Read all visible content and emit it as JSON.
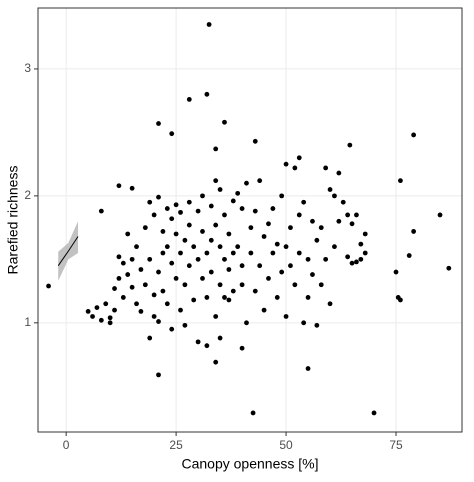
{
  "chart_data": {
    "type": "scatter",
    "x_label": "Canopy openness [%]",
    "y_label": "Rarefied richness",
    "xlim": [
      -6.4,
      90
    ],
    "ylim": [
      0.14,
      3.48
    ],
    "xticks": [
      0,
      25,
      50,
      75
    ],
    "yticks": [
      1,
      2,
      3
    ],
    "grid": true,
    "point_color": "#000000",
    "points": {
      "x": [
        32.5,
        28,
        32,
        21,
        24,
        36,
        43,
        34,
        53,
        64.5,
        79,
        76,
        85,
        87,
        70,
        42.5,
        55,
        21,
        34,
        40,
        -4,
        8,
        12,
        15,
        75,
        75.5,
        76,
        78,
        79,
        68,
        68,
        66,
        65,
        5,
        6,
        7,
        8,
        9,
        10,
        10,
        11,
        11,
        12,
        12,
        13,
        13,
        14,
        14,
        15,
        15,
        16,
        16,
        17,
        17,
        18,
        18,
        19,
        19,
        19,
        20,
        20,
        20,
        21,
        21,
        21,
        22,
        22,
        22,
        23,
        23,
        23,
        24,
        24,
        24,
        25,
        25,
        25,
        26,
        26,
        26,
        27,
        27,
        27,
        28,
        28,
        28,
        29,
        29,
        30,
        30,
        30,
        31,
        31,
        31,
        32,
        32,
        32,
        33,
        33,
        33,
        34,
        34,
        34,
        35,
        35,
        35,
        35,
        36,
        36,
        36,
        37,
        37,
        37,
        38,
        38,
        38,
        39,
        39,
        40,
        40,
        40,
        41,
        41,
        42,
        42,
        43,
        43,
        44,
        44,
        45,
        45,
        46,
        46,
        47,
        47,
        48,
        48,
        49,
        49,
        50,
        50,
        50,
        51,
        51,
        52,
        52,
        53,
        53,
        54,
        54,
        55,
        55,
        56,
        56,
        57,
        57,
        58,
        58,
        59,
        59,
        60,
        60,
        61,
        61,
        62,
        62,
        63,
        64,
        64,
        65,
        66,
        67,
        67
      ],
      "y": [
        3.35,
        2.76,
        2.8,
        2.57,
        2.49,
        2.58,
        2.43,
        2.37,
        2.3,
        2.4,
        2.48,
        2.12,
        1.85,
        1.43,
        0.29,
        0.29,
        0.64,
        0.59,
        0.69,
        0.8,
        1.29,
        1.88,
        2.08,
        2.06,
        1.4,
        1.2,
        1.18,
        1.53,
        1.72,
        1.7,
        1.55,
        1.48,
        1.47,
        1.09,
        1.05,
        1.12,
        1.02,
        1.15,
        1.0,
        1.04,
        1.1,
        1.27,
        1.35,
        1.52,
        1.47,
        1.2,
        1.7,
        1.38,
        1.5,
        1.28,
        1.15,
        1.6,
        1.42,
        1.09,
        1.75,
        1.3,
        1.95,
        0.88,
        1.5,
        1.22,
        1.05,
        1.85,
        1.99,
        1.4,
        1.01,
        1.72,
        1.55,
        1.25,
        1.9,
        1.6,
        1.15,
        1.47,
        1.82,
        0.95,
        1.93,
        1.35,
        1.7,
        1.55,
        1.1,
        1.87,
        1.65,
        1.3,
        0.98,
        1.95,
        1.45,
        1.77,
        1.6,
        1.18,
        1.5,
        1.88,
        0.85,
        1.72,
        1.35,
        2.0,
        1.55,
        1.2,
        0.82,
        1.92,
        1.65,
        1.4,
        2.12,
        1.05,
        1.77,
        1.6,
        1.3,
        2.05,
        0.88,
        1.85,
        1.5,
        1.2,
        1.7,
        1.42,
        1.18,
        1.96,
        1.55,
        1.25,
        2.02,
        1.6,
        1.9,
        1.3,
        1.45,
        2.1,
        1.0,
        1.75,
        1.55,
        1.88,
        1.25,
        1.45,
        2.12,
        1.68,
        1.1,
        1.78,
        1.35,
        1.55,
        1.9,
        1.2,
        1.62,
        2.0,
        1.4,
        2.25,
        1.6,
        1.05,
        1.75,
        1.45,
        2.22,
        1.3,
        1.85,
        1.55,
        1.95,
        1.0,
        1.5,
        1.2,
        1.8,
        1.38,
        1.65,
        0.98,
        1.75,
        1.3,
        2.22,
        1.5,
        2.05,
        1.15,
        2.0,
        1.6,
        2.18,
        1.8,
        1.95,
        1.85,
        1.52,
        1.78,
        1.85,
        1.5,
        1.62
      ]
    },
    "fit": {
      "color": "#000000",
      "band_color": "#b3b3b3",
      "x": [
        -1.8,
        0.5,
        2.7
      ],
      "y": [
        1.45,
        1.565,
        1.68
      ],
      "lower": [
        1.33,
        1.5,
        1.55
      ],
      "upper": [
        1.56,
        1.63,
        1.8
      ]
    }
  }
}
